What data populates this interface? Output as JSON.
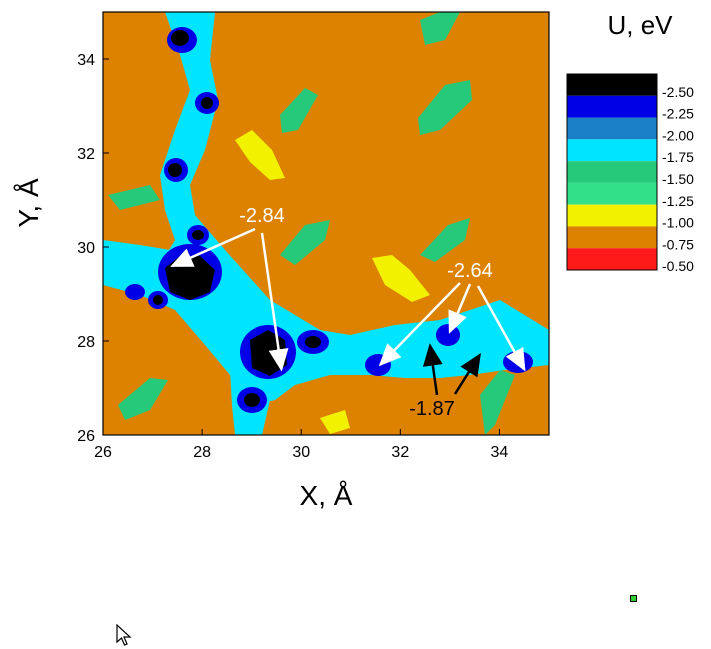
{
  "chart_data": {
    "type": "heatmap",
    "title": "U, eV",
    "xlabel": "X, Å",
    "ylabel": "Y, Å",
    "xlim": [
      26,
      35
    ],
    "ylim": [
      26,
      35
    ],
    "x_ticks": [
      26,
      28,
      30,
      32,
      34
    ],
    "y_ticks": [
      26,
      28,
      30,
      32,
      34
    ],
    "grid": false,
    "legend": "right",
    "colorbar": {
      "title": "U, eV",
      "levels": [
        {
          "label": "-2.50",
          "color": "#000000"
        },
        {
          "label": "-2.25",
          "color": "#0000e6"
        },
        {
          "label": "-2.00",
          "color": "#1a7fc4"
        },
        {
          "label": "-1.75",
          "color": "#00e5ff"
        },
        {
          "label": "-1.50",
          "color": "#26c97a"
        },
        {
          "label": "-1.25",
          "color": "#33e08a"
        },
        {
          "label": "-1.00",
          "color": "#f2f200"
        },
        {
          "label": "-0.75",
          "color": "#dc8200"
        },
        {
          "label": "-0.50",
          "color": "#ff1a1a"
        }
      ]
    },
    "annotations": [
      {
        "text": "-2.84",
        "color": "#ffffff",
        "points": [
          [
            27.4,
            29.6
          ],
          [
            29.6,
            27.4
          ]
        ]
      },
      {
        "text": "-2.64",
        "color": "#ffffff",
        "points": [
          [
            31.6,
            27.5
          ],
          [
            33.0,
            28.2
          ],
          [
            34.5,
            27.4
          ]
        ]
      },
      {
        "text": "-1.87",
        "color": "#000000",
        "points": [
          [
            32.6,
            27.9
          ],
          [
            33.6,
            27.7
          ]
        ]
      }
    ]
  },
  "colors": {
    "background": "#dc8200",
    "channel": "#00e5ff",
    "deep": "#000000",
    "blue": "#0000e6",
    "green": "#33d18a",
    "yellow": "#f2f200"
  },
  "ui": {
    "cursor_icon": "mouse-pointer-icon",
    "marker_icon": "green-square-icon"
  }
}
